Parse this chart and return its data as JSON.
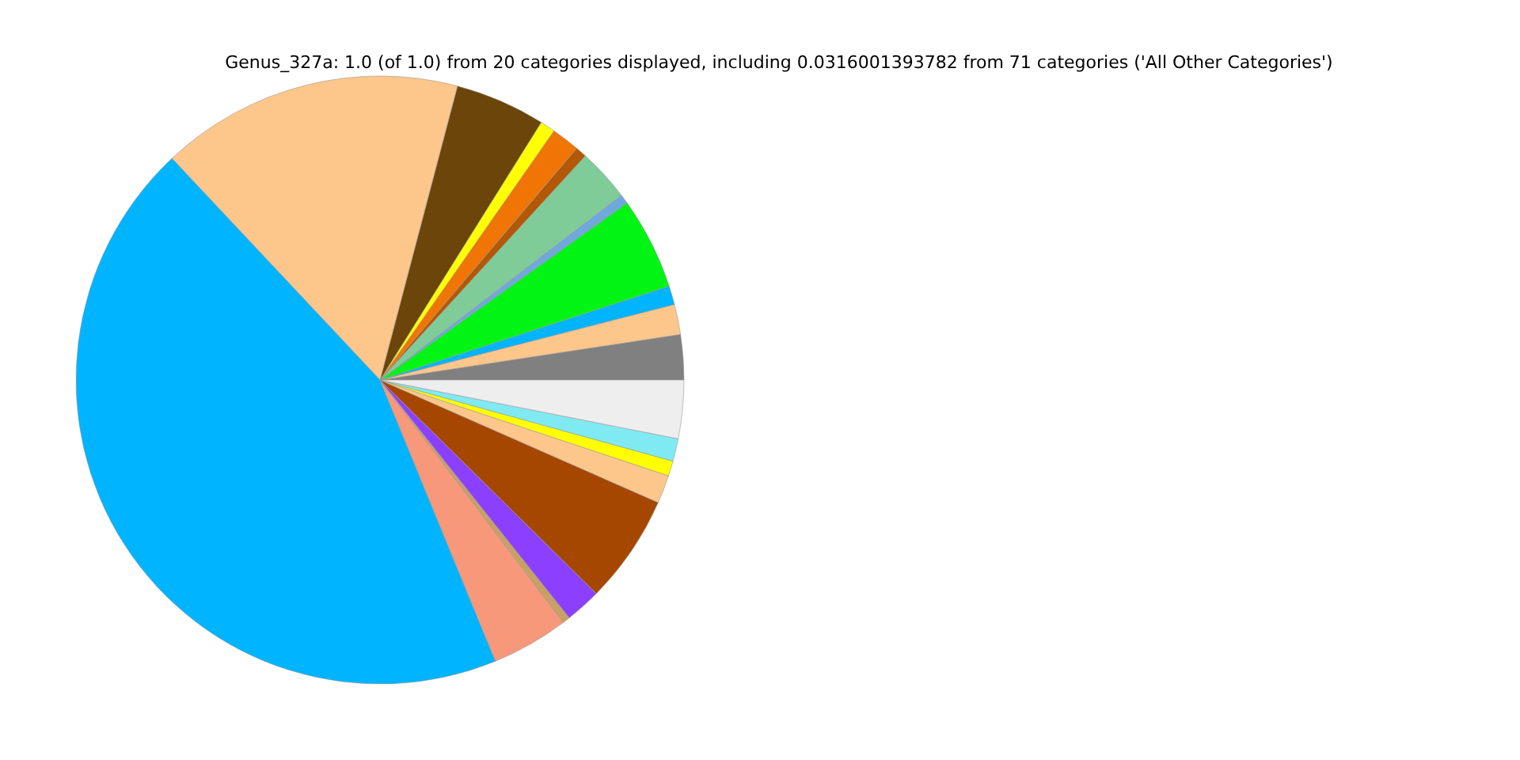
{
  "chart_data": {
    "type": "pie",
    "title": "Genus_327a: 1.0 (of 1.0) from 20 categories displayed, including 0.0316001393782 from 71 categories ('All Other Categories')",
    "categories": [
      null,
      null,
      null,
      null,
      null,
      null,
      null,
      null,
      null,
      null,
      null,
      null,
      null,
      null,
      null,
      null,
      null,
      null,
      null,
      null
    ],
    "values": [
      2.4,
      1.6,
      1.0,
      4.9,
      0.5,
      2.8,
      0.6,
      1.5,
      0.8,
      4.8,
      16.1,
      44.2,
      4.1,
      0.4,
      1.9,
      5.8,
      1.5,
      0.8,
      1.2,
      3.1
    ],
    "colors": [
      "#808080",
      "#fdc68a",
      "#00b4ff",
      "#00f514",
      "#6fa8dc",
      "#80cc99",
      "#b35806",
      "#f07504",
      "#ffff00",
      "#6b4509",
      "#fdc68a",
      "#00b4ff",
      "#f7987a",
      "#c9a064",
      "#8c40ff",
      "#a64700",
      "#fdc68a",
      "#ffff00",
      "#80eaf2",
      "#eeeeee"
    ],
    "legend": false
  }
}
